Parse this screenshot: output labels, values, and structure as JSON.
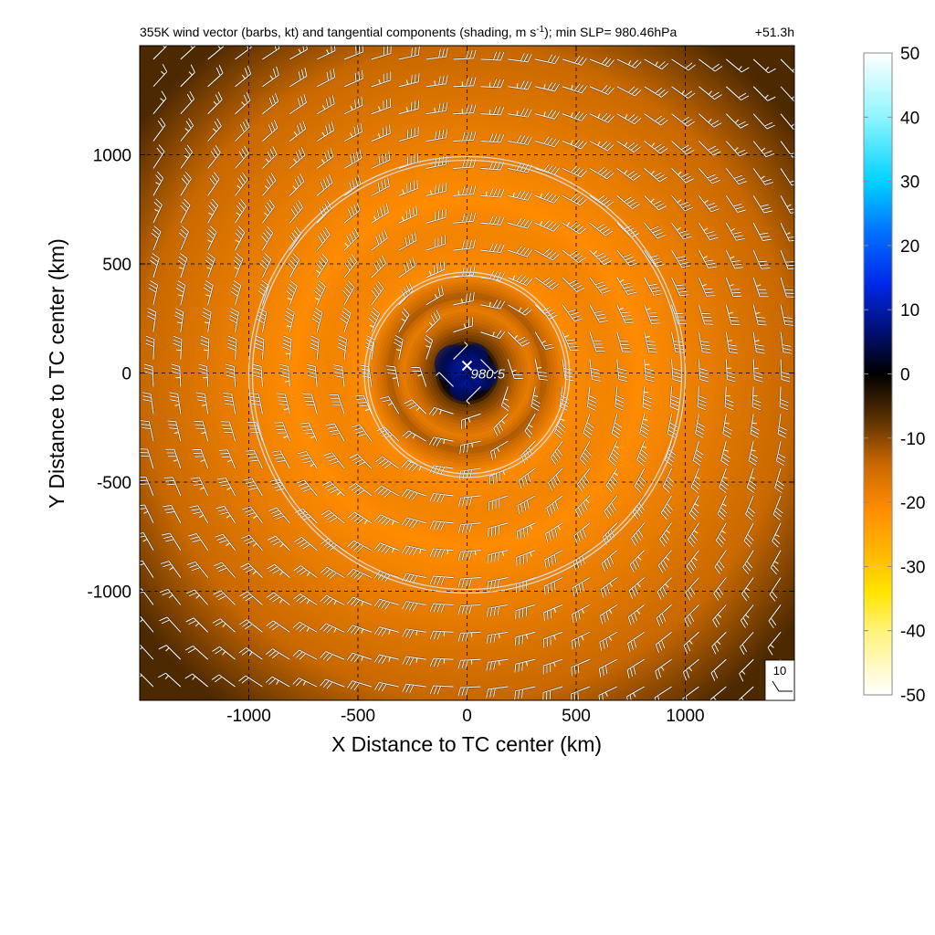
{
  "chart_data": {
    "type": "heatmap",
    "title": "355K wind vector (barbs, kt) and tangential components (shading, m s",
    "title_superscript": "-1",
    "title_suffix": "); min SLP= 980.46hPa",
    "time_label": "+51.3h",
    "xlabel": "X Distance to TC center (km)",
    "ylabel": "Y Distance to TC center (km)",
    "xlim": [
      -1500,
      1500
    ],
    "ylim": [
      -1500,
      1500
    ],
    "x_ticks": [
      -1000,
      -500,
      0,
      500,
      1000
    ],
    "y_ticks": [
      -1000,
      -500,
      0,
      500,
      1000
    ],
    "x_tick_labels": [
      "-1000",
      "-500",
      "0",
      "500",
      "1000"
    ],
    "y_tick_labels": [
      "-1000",
      "-500",
      "0",
      "500",
      "1000"
    ],
    "grid": "dashed",
    "colorbar": {
      "min": -50,
      "max": 50,
      "ticks": [
        50,
        40,
        30,
        20,
        10,
        0,
        -10,
        -20,
        -30,
        -40,
        -50
      ],
      "tick_labels": [
        "50",
        "40",
        "30",
        "20",
        "10",
        "0",
        "-10",
        "-20",
        "-30",
        "-40",
        "-50"
      ],
      "placement": "right",
      "stops": [
        {
          "v": -50,
          "color": "#ffffff"
        },
        {
          "v": -40,
          "color": "#fff27a"
        },
        {
          "v": -34,
          "color": "#ffe500"
        },
        {
          "v": -28,
          "color": "#ffb800"
        },
        {
          "v": -21,
          "color": "#ff8c00"
        },
        {
          "v": -14,
          "color": "#c86800"
        },
        {
          "v": -7,
          "color": "#5a3000"
        },
        {
          "v": 0,
          "color": "#000000"
        },
        {
          "v": 7,
          "color": "#00107a"
        },
        {
          "v": 14,
          "color": "#0028e8"
        },
        {
          "v": 22,
          "color": "#0070ff"
        },
        {
          "v": 30,
          "color": "#00d2ff"
        },
        {
          "v": 40,
          "color": "#8ef5ff"
        },
        {
          "v": 50,
          "color": "#ffffff"
        }
      ]
    },
    "rings_km": [
      470,
      1000
    ],
    "center": {
      "x": 0,
      "y": 0,
      "label": "980.5"
    },
    "reference_barb": {
      "label": "10",
      "units": "kt"
    },
    "barb_field": {
      "spacing_km": 125,
      "circulation": "cyclonic"
    }
  }
}
